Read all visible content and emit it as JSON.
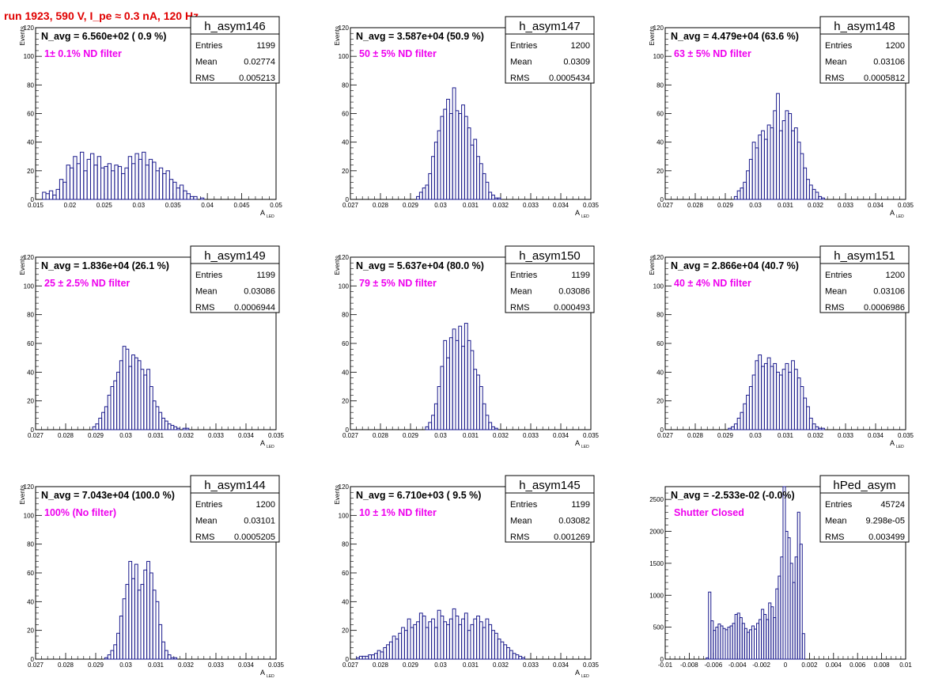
{
  "page_title": "run 1923,   590 V, I_pe ≈ 0.3 nA, 120 Hz",
  "colors": {
    "histogram_line": "#1a1a8c",
    "page_title": "#e00000",
    "annotation": "#ee00ee",
    "frame": "#000000"
  },
  "stats_labels": {
    "entries": "Entries",
    "mean": "Mean",
    "rms": "RMS"
  },
  "chart_data": [
    {
      "type": "bar",
      "histogram_name": "h_asym146",
      "navg_text": "N_avg = 6.560e+02 ( 0.9 %)",
      "annotation": "1± 0.1% ND filter",
      "stats": {
        "entries": "1199",
        "mean": "0.02774",
        "rms": "0.005213"
      },
      "ylabel": "Events",
      "xlabel_main": "A",
      "xlabel_sub": "LED",
      "xlim": [
        0.015,
        0.05
      ],
      "ylim": [
        0,
        120
      ],
      "xticks": [
        "0.015",
        "0.02",
        "0.025",
        "0.03",
        "0.035",
        "0.04",
        "0.045",
        "0.05"
      ],
      "xtick_values": [
        0.015,
        0.02,
        0.025,
        0.03,
        0.035,
        0.04,
        0.045,
        0.05
      ],
      "yticks": [
        "0",
        "20",
        "40",
        "60",
        "80",
        "100",
        "120"
      ],
      "ytick_values": [
        0,
        20,
        40,
        60,
        80,
        100,
        120
      ],
      "bin_start": 0.016,
      "bin_width": 0.0005,
      "values": [
        5,
        4,
        6,
        3,
        7,
        14,
        12,
        24,
        22,
        30,
        25,
        33,
        20,
        28,
        32,
        24,
        30,
        22,
        23,
        25,
        20,
        24,
        23,
        18,
        22,
        30,
        25,
        32,
        28,
        33,
        24,
        28,
        26,
        20,
        22,
        18,
        20,
        14,
        12,
        8,
        10,
        6,
        4,
        2,
        2,
        0,
        1,
        0,
        0,
        0
      ]
    },
    {
      "type": "bar",
      "histogram_name": "h_asym147",
      "navg_text": "N_avg = 3.587e+04 (50.9 %)",
      "annotation": "50 ± 5% ND filter",
      "stats": {
        "entries": "1200",
        "mean": "0.0309",
        "rms": "0.0005434"
      },
      "ylabel": "Events",
      "xlabel_main": "A",
      "xlabel_sub": "LED",
      "xlim": [
        0.027,
        0.035
      ],
      "ylim": [
        0,
        120
      ],
      "xticks": [
        "0.027",
        "0.028",
        "0.029",
        "0.03",
        "0.031",
        "0.032",
        "0.033",
        "0.034",
        "0.035"
      ],
      "xtick_values": [
        0.027,
        0.028,
        0.029,
        0.03,
        0.031,
        0.032,
        0.033,
        0.034,
        0.035
      ],
      "yticks": [
        "0",
        "20",
        "40",
        "60",
        "80",
        "100",
        "120"
      ],
      "ytick_values": [
        0,
        20,
        40,
        60,
        80,
        100,
        120
      ],
      "bin_start": 0.0292,
      "bin_width": 0.0001,
      "values": [
        2,
        5,
        8,
        10,
        18,
        30,
        40,
        48,
        58,
        63,
        70,
        60,
        78,
        62,
        60,
        66,
        58,
        50,
        38,
        42,
        30,
        25,
        18,
        12,
        5,
        3,
        1,
        1
      ]
    },
    {
      "type": "bar",
      "histogram_name": "h_asym148",
      "navg_text": "N_avg = 4.479e+04 (63.6 %)",
      "annotation": "63 ± 5% ND filter",
      "stats": {
        "entries": "1200",
        "mean": "0.03106",
        "rms": "0.0005812"
      },
      "ylabel": "Events",
      "xlabel_main": "A",
      "xlabel_sub": "LED",
      "xlim": [
        0.027,
        0.035
      ],
      "ylim": [
        0,
        120
      ],
      "xticks": [
        "0.027",
        "0.028",
        "0.029",
        "0.03",
        "0.031",
        "0.032",
        "0.033",
        "0.034",
        "0.035"
      ],
      "xtick_values": [
        0.027,
        0.028,
        0.029,
        0.03,
        0.031,
        0.032,
        0.033,
        0.034,
        0.035
      ],
      "yticks": [
        "0",
        "20",
        "40",
        "60",
        "80",
        "100",
        "120"
      ],
      "ytick_values": [
        0,
        20,
        40,
        60,
        80,
        100,
        120
      ],
      "bin_start": 0.0293,
      "bin_width": 0.0001,
      "values": [
        2,
        6,
        8,
        12,
        20,
        28,
        40,
        36,
        45,
        48,
        42,
        52,
        50,
        62,
        74,
        48,
        55,
        62,
        60,
        48,
        50,
        40,
        32,
        22,
        14,
        10,
        7,
        5,
        2,
        1
      ]
    },
    {
      "type": "bar",
      "histogram_name": "h_asym149",
      "navg_text": "N_avg = 1.836e+04 (26.1 %)",
      "annotation": "25 ± 2.5% ND filter",
      "stats": {
        "entries": "1199",
        "mean": "0.03086",
        "rms": "0.0006944"
      },
      "ylabel": "Events",
      "xlabel_main": "A",
      "xlabel_sub": "LED",
      "xlim": [
        0.027,
        0.035
      ],
      "ylim": [
        0,
        120
      ],
      "xticks": [
        "0.027",
        "0.028",
        "0.029",
        "0.03",
        "0.031",
        "0.032",
        "0.033",
        "0.034",
        "0.035"
      ],
      "xtick_values": [
        0.027,
        0.028,
        0.029,
        0.03,
        0.031,
        0.032,
        0.033,
        0.034,
        0.035
      ],
      "yticks": [
        "0",
        "20",
        "40",
        "60",
        "80",
        "100",
        "120"
      ],
      "ytick_values": [
        0,
        20,
        40,
        60,
        80,
        100,
        120
      ],
      "bin_start": 0.0289,
      "bin_width": 0.0001,
      "values": [
        2,
        4,
        8,
        12,
        16,
        24,
        30,
        34,
        40,
        48,
        58,
        56,
        44,
        52,
        50,
        48,
        42,
        38,
        42,
        30,
        20,
        16,
        12,
        8,
        6,
        4,
        3,
        2,
        1,
        0,
        1,
        1
      ]
    },
    {
      "type": "bar",
      "histogram_name": "h_asym150",
      "navg_text": "N_avg = 5.637e+04 (80.0 %)",
      "annotation": "79 ± 5% ND filter",
      "stats": {
        "entries": "1199",
        "mean": "0.03086",
        "rms": "0.000493"
      },
      "ylabel": "Events",
      "xlabel_main": "A",
      "xlabel_sub": "LED",
      "xlim": [
        0.027,
        0.035
      ],
      "ylim": [
        0,
        120
      ],
      "xticks": [
        "0.027",
        "0.028",
        "0.029",
        "0.03",
        "0.031",
        "0.032",
        "0.033",
        "0.034",
        "0.035"
      ],
      "xtick_values": [
        0.027,
        0.028,
        0.029,
        0.03,
        0.031,
        0.032,
        0.033,
        0.034,
        0.035
      ],
      "yticks": [
        "0",
        "20",
        "40",
        "60",
        "80",
        "100",
        "120"
      ],
      "ytick_values": [
        0,
        20,
        40,
        60,
        80,
        100,
        120
      ],
      "bin_start": 0.0295,
      "bin_width": 0.0001,
      "values": [
        2,
        5,
        10,
        18,
        30,
        44,
        62,
        50,
        64,
        70,
        62,
        72,
        58,
        74,
        62,
        55,
        42,
        38,
        30,
        18,
        10,
        5,
        2,
        1
      ]
    },
    {
      "type": "bar",
      "histogram_name": "h_asym151",
      "navg_text": "N_avg = 2.866e+04 (40.7 %)",
      "annotation": "40 ± 4% ND filter",
      "stats": {
        "entries": "1200",
        "mean": "0.03106",
        "rms": "0.0006986"
      },
      "ylabel": "Events",
      "xlabel_main": "A",
      "xlabel_sub": "LED",
      "xlim": [
        0.027,
        0.035
      ],
      "ylim": [
        0,
        120
      ],
      "xticks": [
        "0.027",
        "0.028",
        "0.029",
        "0.03",
        "0.031",
        "0.032",
        "0.033",
        "0.034",
        "0.035"
      ],
      "xtick_values": [
        0.027,
        0.028,
        0.029,
        0.03,
        0.031,
        0.032,
        0.033,
        0.034,
        0.035
      ],
      "yticks": [
        "0",
        "20",
        "40",
        "60",
        "80",
        "100",
        "120"
      ],
      "ytick_values": [
        0,
        20,
        40,
        60,
        80,
        100,
        120
      ],
      "bin_start": 0.0291,
      "bin_width": 0.0001,
      "values": [
        1,
        2,
        4,
        8,
        12,
        18,
        24,
        30,
        38,
        48,
        52,
        44,
        46,
        50,
        44,
        46,
        40,
        38,
        42,
        46,
        40,
        48,
        42,
        36,
        30,
        22,
        16,
        8,
        4,
        2,
        1,
        1
      ]
    },
    {
      "type": "bar",
      "histogram_name": "h_asym144",
      "navg_text": "N_avg = 7.043e+04 (100.0 %)",
      "annotation": "100% (No filter)",
      "stats": {
        "entries": "1200",
        "mean": "0.03101",
        "rms": "0.0005205"
      },
      "ylabel": "Events",
      "xlabel_main": "A",
      "xlabel_sub": "LED",
      "xlim": [
        0.027,
        0.035
      ],
      "ylim": [
        0,
        120
      ],
      "xticks": [
        "0.027",
        "0.028",
        "0.029",
        "0.03",
        "0.031",
        "0.032",
        "0.033",
        "0.034",
        "0.035"
      ],
      "xtick_values": [
        0.027,
        0.028,
        0.029,
        0.03,
        0.031,
        0.032,
        0.033,
        0.034,
        0.035
      ],
      "yticks": [
        "0",
        "20",
        "40",
        "60",
        "80",
        "100",
        "120"
      ],
      "ytick_values": [
        0,
        20,
        40,
        60,
        80,
        100,
        120
      ],
      "bin_start": 0.0293,
      "bin_width": 0.0001,
      "values": [
        1,
        3,
        6,
        10,
        18,
        30,
        42,
        52,
        68,
        56,
        66,
        48,
        52,
        62,
        68,
        60,
        48,
        40,
        24,
        12,
        6,
        3,
        1,
        1
      ]
    },
    {
      "type": "bar",
      "histogram_name": "h_asym145",
      "navg_text": "N_avg = 6.710e+03 ( 9.5 %)",
      "annotation": "10 ± 1% ND filter",
      "stats": {
        "entries": "1199",
        "mean": "0.03082",
        "rms": "0.001269"
      },
      "ylabel": "Events",
      "xlabel_main": "A",
      "xlabel_sub": "LED",
      "xlim": [
        0.027,
        0.035
      ],
      "ylim": [
        0,
        120
      ],
      "xticks": [
        "0.027",
        "0.028",
        "0.029",
        "0.03",
        "0.031",
        "0.032",
        "0.033",
        "0.034",
        "0.035"
      ],
      "xtick_values": [
        0.027,
        0.028,
        0.029,
        0.03,
        0.031,
        0.032,
        0.033,
        0.034,
        0.035
      ],
      "yticks": [
        "0",
        "20",
        "40",
        "60",
        "80",
        "100",
        "120"
      ],
      "ytick_values": [
        0,
        20,
        40,
        60,
        80,
        100,
        120
      ],
      "bin_start": 0.0272,
      "bin_width": 0.0001,
      "values": [
        1,
        2,
        2,
        2,
        3,
        3,
        4,
        6,
        5,
        8,
        10,
        12,
        16,
        14,
        18,
        22,
        20,
        28,
        22,
        24,
        26,
        32,
        30,
        22,
        26,
        28,
        22,
        34,
        30,
        26,
        24,
        28,
        35,
        30,
        24,
        28,
        32,
        20,
        24,
        28,
        30,
        26,
        22,
        28,
        24,
        20,
        18,
        14,
        12,
        10,
        8,
        6,
        4,
        3,
        2,
        1
      ]
    },
    {
      "type": "bar",
      "histogram_name": "hPed_asym",
      "navg_text": "N_avg = -2.533e-02 (-0.0%)",
      "annotation": "Shutter Closed",
      "stats": {
        "entries": "45724",
        "mean": "9.298e-05",
        "rms": "0.003499"
      },
      "ylabel": "",
      "xlabel_main": "",
      "xlabel_sub": "",
      "xlim": [
        -0.01,
        0.01
      ],
      "ylim": [
        0,
        2700
      ],
      "xticks": [
        "-0.01",
        "-0.008",
        "-0.006",
        "-0.004",
        "-0.002",
        "0",
        "0.002",
        "0.004",
        "0.006",
        "0.008",
        "0.01"
      ],
      "xtick_values": [
        -0.01,
        -0.008,
        -0.006,
        -0.004,
        -0.002,
        0,
        0.002,
        0.004,
        0.006,
        0.008,
        0.01
      ],
      "yticks": [
        "0",
        "500",
        "1000",
        "1500",
        "2000",
        "2500"
      ],
      "ytick_values": [
        0,
        500,
        1000,
        1500,
        2000,
        2500
      ],
      "bin_start": -0.0066,
      "bin_width": 0.0002,
      "values": [
        20,
        1050,
        600,
        450,
        500,
        550,
        520,
        480,
        460,
        500,
        520,
        560,
        700,
        720,
        650,
        560,
        480,
        420,
        460,
        520,
        470,
        560,
        620,
        780,
        700,
        620,
        880,
        820,
        650,
        1100,
        1300,
        1600,
        2700,
        2000,
        1900,
        1500,
        1200,
        1600,
        2300,
        1800,
        400,
        0
      ]
    }
  ]
}
